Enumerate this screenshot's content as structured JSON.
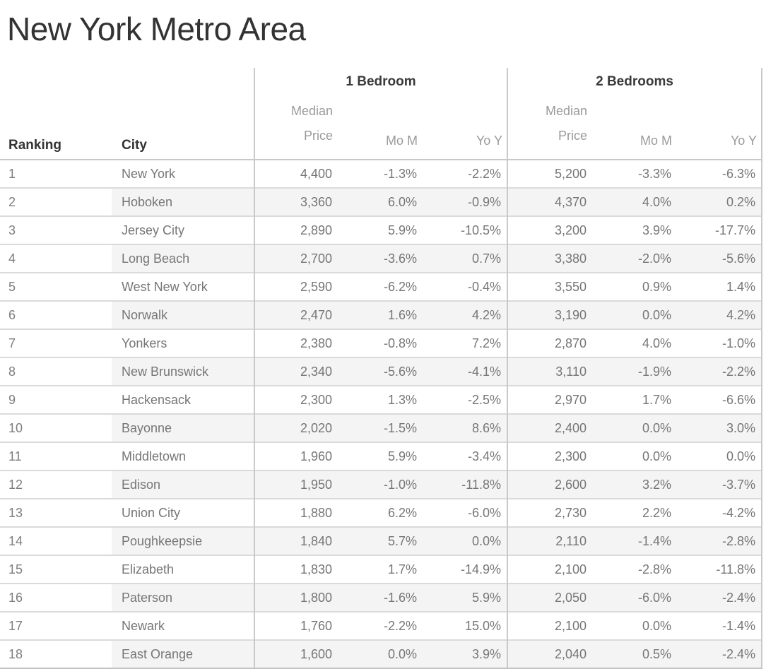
{
  "title": "New York Metro Area",
  "header": {
    "ranking": "Ranking",
    "city": "City",
    "groups": [
      {
        "label": "1 Bedroom"
      },
      {
        "label": "2 Bedrooms"
      }
    ],
    "sub": {
      "median_top": "Median",
      "median_bottom": "Price",
      "mom": "Mo M",
      "yoy": "Yo Y"
    }
  },
  "colors": {
    "title_text": "#333333",
    "header_text": "#333333",
    "group_header_text": "#3a3a3a",
    "sub_header_text": "#9a9a9a",
    "data_text": "#767676",
    "row_band": "#f4f4f4",
    "row_grid_line": "#dadada",
    "divider_line": "#c9c9c9",
    "bottom_border": "#c2c2c2",
    "background": "#ffffff"
  },
  "chart_data": {
    "type": "table",
    "title": "New York Metro Area",
    "column_groups": [
      "1 Bedroom",
      "2 Bedrooms"
    ],
    "columns": [
      "Ranking",
      "City",
      "1 Bedroom Median Price",
      "1 Bedroom Mo M",
      "1 Bedroom Yo Y",
      "2 Bedrooms Median Price",
      "2 Bedrooms Mo M",
      "2 Bedrooms Yo Y"
    ],
    "rows": [
      [
        "1",
        "New York",
        "4,400",
        "-1.3%",
        "-2.2%",
        "5,200",
        "-3.3%",
        "-6.3%"
      ],
      [
        "2",
        "Hoboken",
        "3,360",
        "6.0%",
        "-0.9%",
        "4,370",
        "4.0%",
        "0.2%"
      ],
      [
        "3",
        "Jersey City",
        "2,890",
        "5.9%",
        "-10.5%",
        "3,200",
        "3.9%",
        "-17.7%"
      ],
      [
        "4",
        "Long Beach",
        "2,700",
        "-3.6%",
        "0.7%",
        "3,380",
        "-2.0%",
        "-5.6%"
      ],
      [
        "5",
        "West New York",
        "2,590",
        "-6.2%",
        "-0.4%",
        "3,550",
        "0.9%",
        "1.4%"
      ],
      [
        "6",
        "Norwalk",
        "2,470",
        "1.6%",
        "4.2%",
        "3,190",
        "0.0%",
        "4.2%"
      ],
      [
        "7",
        "Yonkers",
        "2,380",
        "-0.8%",
        "7.2%",
        "2,870",
        "4.0%",
        "-1.0%"
      ],
      [
        "8",
        "New Brunswick",
        "2,340",
        "-5.6%",
        "-4.1%",
        "3,110",
        "-1.9%",
        "-2.2%"
      ],
      [
        "9",
        "Hackensack",
        "2,300",
        "1.3%",
        "-2.5%",
        "2,970",
        "1.7%",
        "-6.6%"
      ],
      [
        "10",
        "Bayonne",
        "2,020",
        "-1.5%",
        "8.6%",
        "2,400",
        "0.0%",
        "3.0%"
      ],
      [
        "11",
        "Middletown",
        "1,960",
        "5.9%",
        "-3.4%",
        "2,300",
        "0.0%",
        "0.0%"
      ],
      [
        "12",
        "Edison",
        "1,950",
        "-1.0%",
        "-11.8%",
        "2,600",
        "3.2%",
        "-3.7%"
      ],
      [
        "13",
        "Union City",
        "1,880",
        "6.2%",
        "-6.0%",
        "2,730",
        "2.2%",
        "-4.2%"
      ],
      [
        "14",
        "Poughkeepsie",
        "1,840",
        "5.7%",
        "0.0%",
        "2,110",
        "-1.4%",
        "-2.8%"
      ],
      [
        "15",
        "Elizabeth",
        "1,830",
        "1.7%",
        "-14.9%",
        "2,100",
        "-2.8%",
        "-11.8%"
      ],
      [
        "16",
        "Paterson",
        "1,800",
        "-1.6%",
        "5.9%",
        "2,050",
        "-6.0%",
        "-2.4%"
      ],
      [
        "17",
        "Newark",
        "1,760",
        "-2.2%",
        "15.0%",
        "2,100",
        "0.0%",
        "-1.4%"
      ],
      [
        "18",
        "East Orange",
        "1,600",
        "0.0%",
        "3.9%",
        "2,040",
        "0.5%",
        "-2.4%"
      ]
    ]
  }
}
